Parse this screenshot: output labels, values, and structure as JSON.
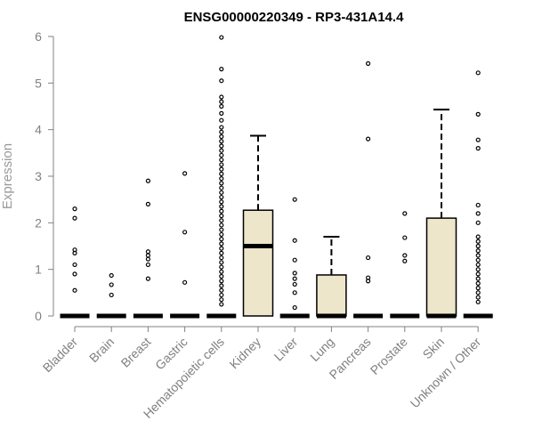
{
  "chart_data": {
    "type": "boxplot",
    "title": "ENSG00000220349 - RP3-431A14.4",
    "ylabel": "Expression",
    "xlabel": "",
    "ylim": [
      0,
      6
    ],
    "yticks": [
      0,
      1,
      2,
      3,
      4,
      5,
      6
    ],
    "box_color": "#ede6cb",
    "categories": [
      "Bladder",
      "Brain",
      "Breast",
      "Gastric",
      "Hematopoietic cells",
      "Kidney",
      "Liver",
      "Lung",
      "Pancreas",
      "Prostate",
      "Skin",
      "Unknown / Other"
    ],
    "boxes": [
      {
        "min": 0,
        "q1": 0,
        "median": 0,
        "q3": 0,
        "max": 0,
        "outliers": [
          0.55,
          0.9,
          1.1,
          1.35,
          1.42,
          2.1,
          2.3
        ]
      },
      {
        "min": 0,
        "q1": 0,
        "median": 0,
        "q3": 0,
        "max": 0,
        "outliers": [
          0.45,
          0.67,
          0.87
        ]
      },
      {
        "min": 0,
        "q1": 0,
        "median": 0,
        "q3": 0,
        "max": 0,
        "outliers": [
          0.8,
          1.1,
          1.22,
          1.3,
          1.38,
          2.4,
          2.9
        ]
      },
      {
        "min": 0,
        "q1": 0,
        "median": 0,
        "q3": 0,
        "max": 0,
        "outliers": [
          0.72,
          1.8,
          3.06
        ]
      },
      {
        "min": 0,
        "q1": 0,
        "median": 0,
        "q3": 0,
        "max": 0,
        "outliers": [
          0.25,
          0.35,
          0.45,
          0.55,
          0.65,
          0.75,
          0.85,
          0.95,
          1.05,
          1.15,
          1.25,
          1.35,
          1.45,
          1.55,
          1.65,
          1.75,
          1.85,
          1.95,
          2.05,
          2.15,
          2.25,
          2.35,
          2.45,
          2.55,
          2.65,
          2.75,
          2.85,
          2.95,
          3.05,
          3.15,
          3.25,
          3.35,
          3.45,
          3.55,
          3.65,
          3.75,
          3.85,
          3.95,
          4.05,
          4.2,
          4.35,
          4.5,
          4.6,
          4.7,
          5.05,
          5.3,
          5.98
        ]
      },
      {
        "min": 0,
        "q1": 0,
        "median": 1.5,
        "q3": 2.27,
        "max": 3.87,
        "outliers": []
      },
      {
        "min": 0,
        "q1": 0,
        "median": 0,
        "q3": 0,
        "max": 0,
        "outliers": [
          0.18,
          0.5,
          0.68,
          0.8,
          0.92,
          1.2,
          1.62,
          2.5
        ]
      },
      {
        "min": 0,
        "q1": 0,
        "median": 0,
        "q3": 0.88,
        "max": 1.7,
        "outliers": []
      },
      {
        "min": 0,
        "q1": 0,
        "median": 0,
        "q3": 0,
        "max": 0,
        "outliers": [
          0.75,
          0.82,
          1.25,
          3.8,
          5.42
        ]
      },
      {
        "min": 0,
        "q1": 0,
        "median": 0,
        "q3": 0,
        "max": 0,
        "outliers": [
          1.18,
          1.3,
          1.68,
          2.2
        ]
      },
      {
        "min": 0,
        "q1": 0,
        "median": 0,
        "q3": 2.1,
        "max": 4.43,
        "outliers": []
      },
      {
        "min": 0,
        "q1": 0,
        "median": 0,
        "q3": 0,
        "max": 0,
        "outliers": [
          0.3,
          0.4,
          0.5,
          0.6,
          0.7,
          0.8,
          0.9,
          1.0,
          1.1,
          1.2,
          1.3,
          1.4,
          1.5,
          1.6,
          1.7,
          2.0,
          2.2,
          2.38,
          3.6,
          3.78,
          4.33,
          5.22
        ]
      }
    ]
  }
}
